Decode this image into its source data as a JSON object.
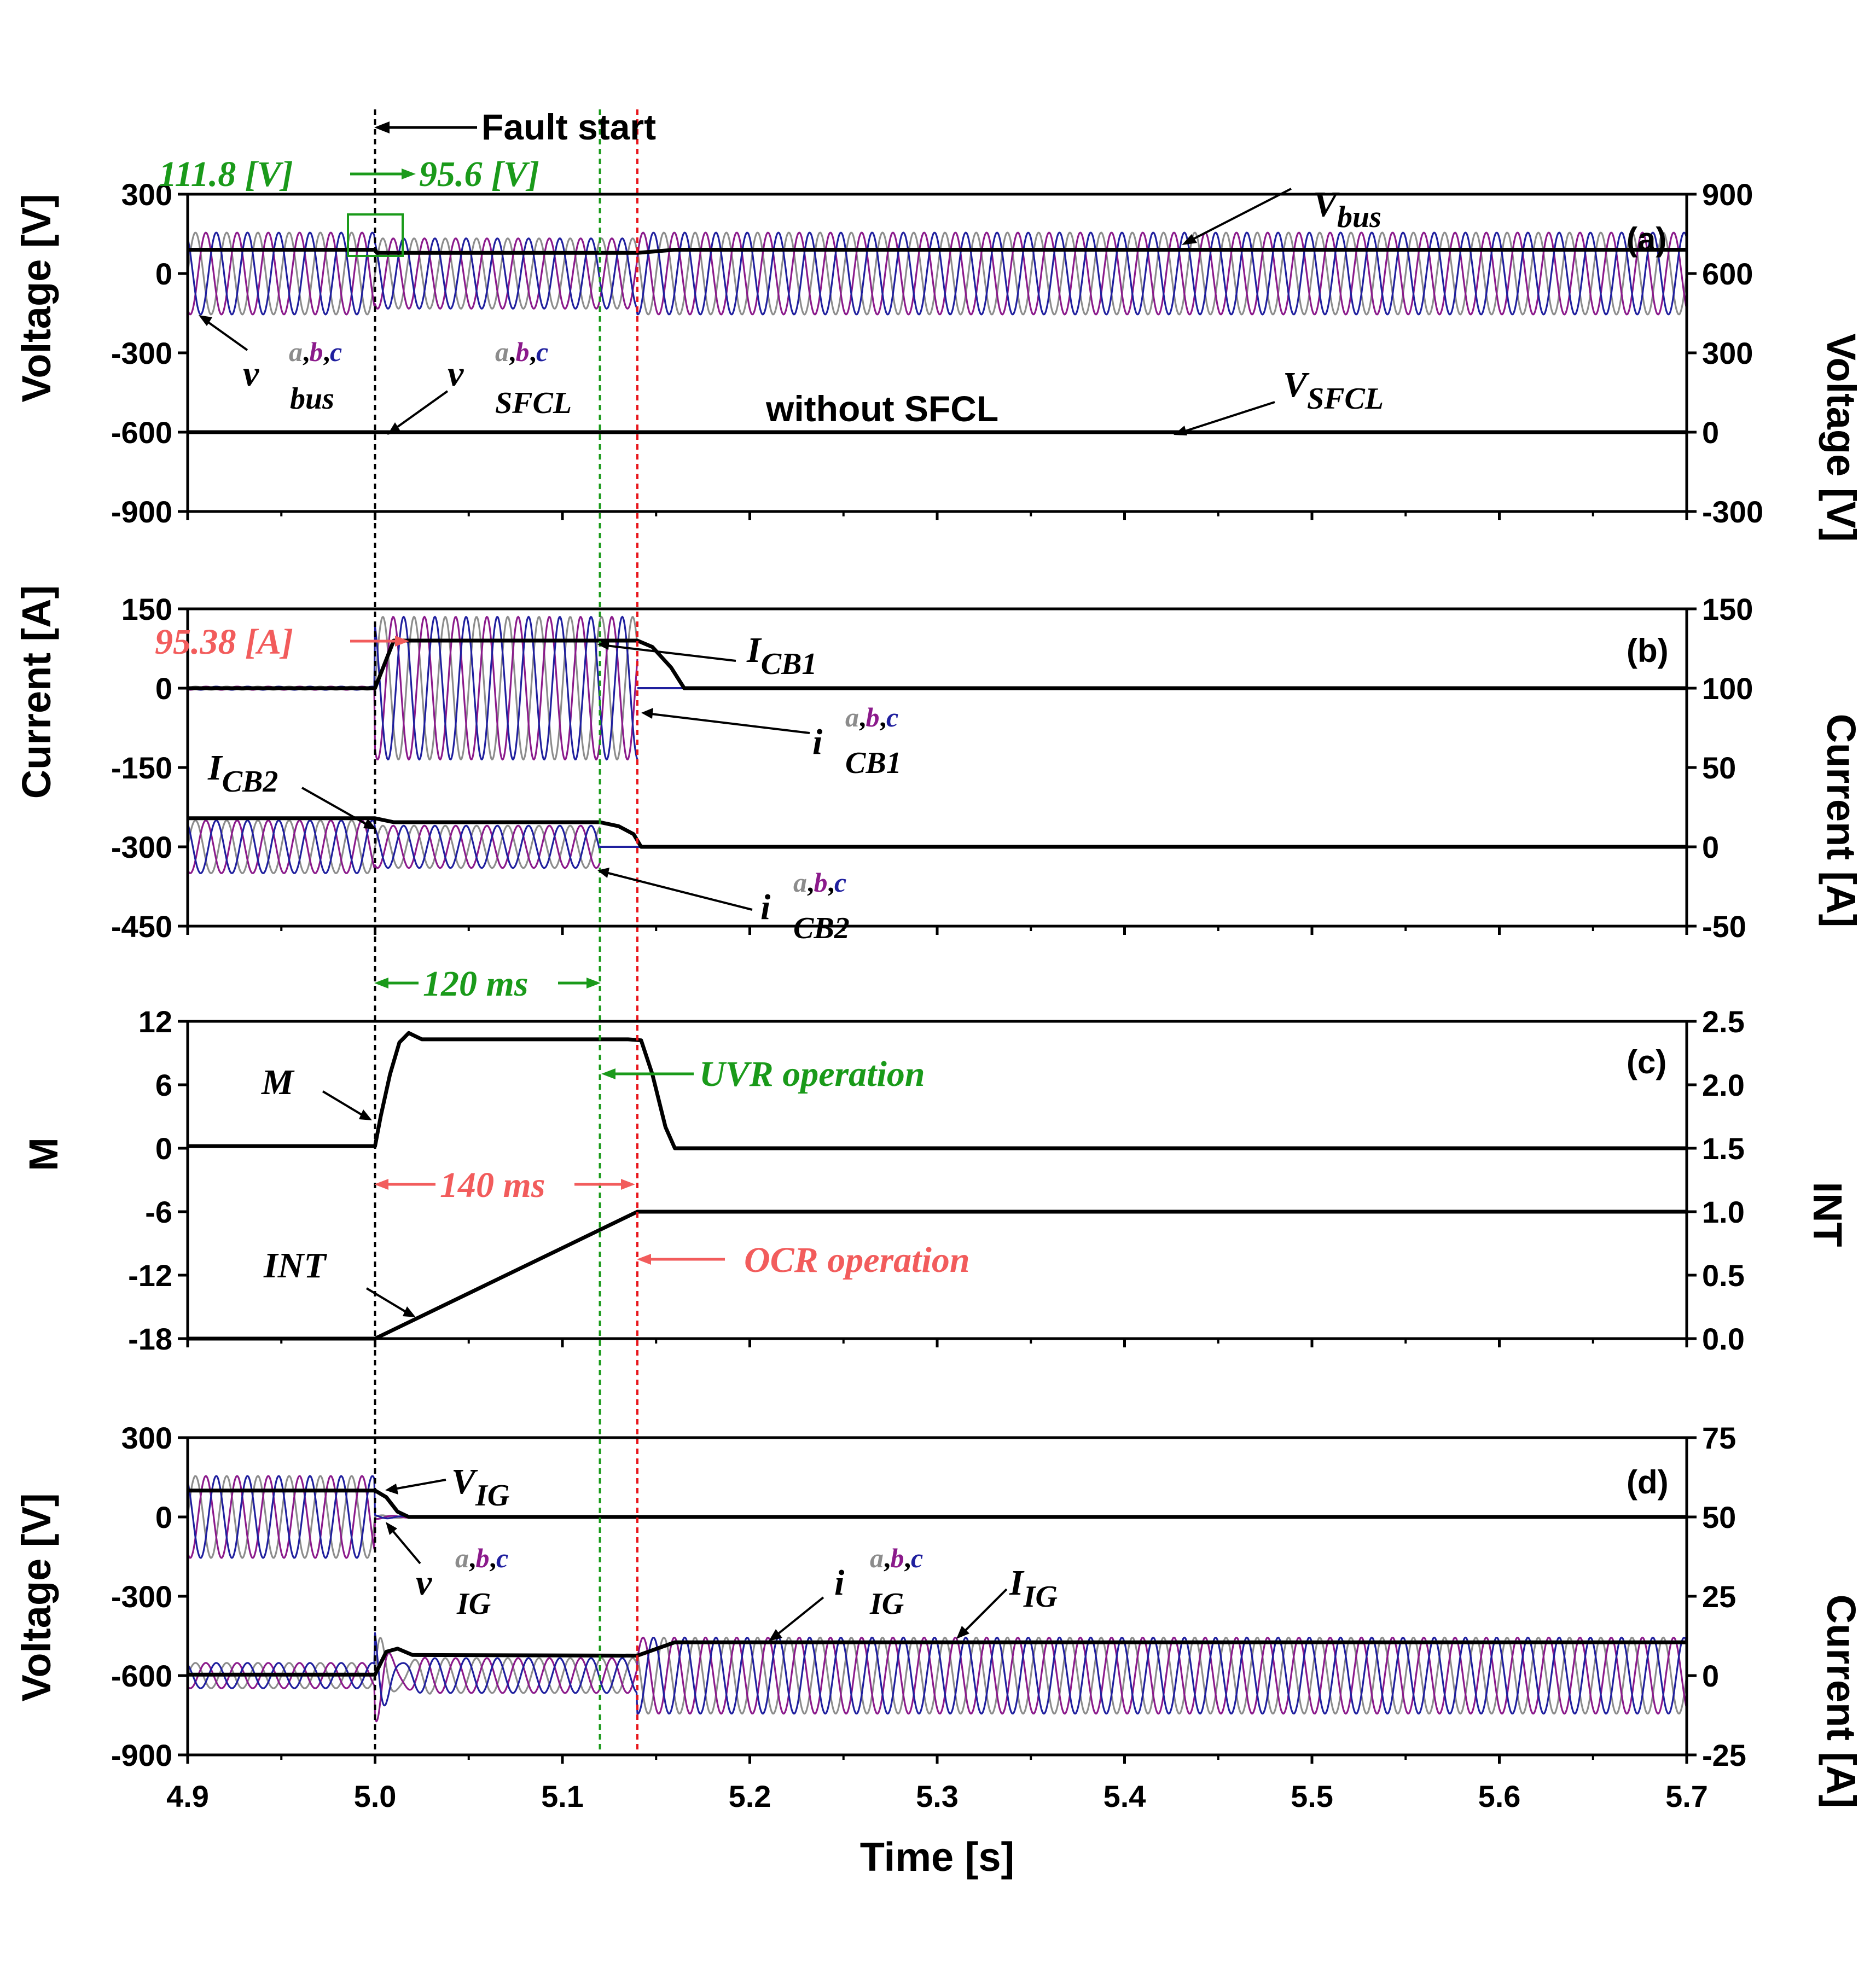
{
  "chart_data": {
    "type": "line",
    "x": {
      "label": "Time [s]",
      "range": [
        4.9,
        5.7
      ],
      "ticks": [
        "4.9",
        "5.0",
        "5.1",
        "5.2",
        "5.3",
        "5.4",
        "5.5",
        "5.6",
        "5.7"
      ]
    },
    "markers": [
      {
        "name": "fault",
        "x": 5.0,
        "color": "#000000",
        "label": "Fault start"
      },
      {
        "name": "uvr",
        "x": 5.12,
        "color": "#1a9a1a",
        "label": "UVR operation"
      },
      {
        "name": "ocr",
        "x": 5.14,
        "color": "#e8141a",
        "label": "OCR operation"
      }
    ],
    "colors": {
      "a": "#8c8c8c",
      "b": "#8b1a8b",
      "c": "#1f1f9e",
      "bold": "#000000",
      "green": "#1a9a1a",
      "red": "#f25c5c"
    },
    "panels": [
      {
        "tag": "(a)",
        "left_axis": {
          "label": "Voltage [V]",
          "range": [
            -900,
            300
          ],
          "ticks": [
            "300",
            "0",
            "-300",
            "-600",
            "-900"
          ]
        },
        "right_axis": {
          "label": "Voltage [V]",
          "range": [
            -300,
            900
          ],
          "ticks": [
            "900",
            "600",
            "300",
            "0",
            "-300"
          ]
        },
        "series": [
          {
            "name": "v_bus a,b,c",
            "axis": "left",
            "phases": [
              "a",
              "b",
              "c"
            ],
            "amplitude_before": 155,
            "amplitude_fault": 133,
            "amplitude_after": 155,
            "freq_hz": 60
          },
          {
            "name": "V_bus",
            "axis": "right",
            "values": [
              [
                4.9,
                690
              ],
              [
                5.0,
                690
              ],
              [
                5.001,
                678
              ],
              [
                5.14,
                678
              ],
              [
                5.16,
                690
              ],
              [
                5.7,
                690
              ]
            ]
          },
          {
            "name": "V_SFCL",
            "axis": "right",
            "values": [
              [
                4.9,
                0
              ],
              [
                5.7,
                0
              ]
            ]
          }
        ],
        "annotations": {
          "v_before": "111.8 [V]",
          "v_after": "95.6 [V]",
          "no_sfcl": "without SFCL",
          "vbus_main": "V",
          "vbus_sub": "bus",
          "vsfcl_main": "V",
          "vsfcl_sub": "SFCL",
          "vbusabc_main": "v",
          "vbusabc_sub": "bus",
          "vsfclabc_main": "v",
          "vsfclabc_sub": "SFCL",
          "sup_a": "a",
          "sup_b": "b",
          "sup_c": "c",
          "comma": ","
        }
      },
      {
        "tag": "(b)",
        "left_axis": {
          "label": "Current [A]",
          "range": [
            -450,
            150
          ],
          "ticks": [
            "150",
            "0",
            "-150",
            "-300",
            "-450"
          ]
        },
        "right_axis": {
          "label": "Current [A]",
          "range": [
            -50,
            150
          ],
          "ticks": [
            "150",
            "100",
            "50",
            "0",
            "-50"
          ]
        },
        "series": [
          {
            "name": "i_CB1 a,b,c",
            "axis": "left",
            "offset": 0,
            "amplitude_before": 3,
            "amplitude_fault": 135,
            "freq_hz": 60,
            "start": 4.9,
            "trip": 5.14
          },
          {
            "name": "I_CB1",
            "axis": "right",
            "values": [
              [
                4.9,
                100
              ],
              [
                5.0,
                100
              ],
              [
                5.01,
                130
              ],
              [
                5.14,
                130
              ],
              [
                5.148,
                126
              ],
              [
                5.158,
                113
              ],
              [
                5.165,
                100
              ],
              [
                5.7,
                100
              ]
            ]
          },
          {
            "name": "i_CB2 a,b,c",
            "axis": "left",
            "offset": -300,
            "amplitude_before": 50,
            "amplitude_fault": 40,
            "freq_hz": 60,
            "start": 4.9,
            "trip": 5.12
          },
          {
            "name": "I_CB2",
            "axis": "right",
            "values": [
              [
                4.9,
                18
              ],
              [
                5.0,
                18
              ],
              [
                5.01,
                15.5
              ],
              [
                5.12,
                15.5
              ],
              [
                5.13,
                13
              ],
              [
                5.138,
                8
              ],
              [
                5.142,
                0
              ],
              [
                5.7,
                0
              ]
            ]
          }
        ],
        "annotations": {
          "i_peak": "95.38 [A]",
          "icb1_main": "I",
          "icb1_sub": "CB1",
          "icb2_main": "I",
          "icb2_sub": "CB2",
          "icb1abc_main": "i",
          "icb1abc_sub": "CB1",
          "icb2abc_main": "i",
          "icb2abc_sub": "CB2",
          "sup_a": "a",
          "sup_b": "b",
          "sup_c": "c",
          "comma": ","
        }
      },
      {
        "tag": "(c)",
        "left_axis": {
          "label": "M",
          "range": [
            -18,
            12
          ],
          "ticks": [
            "12",
            "6",
            "0",
            "-6",
            "-12",
            "-18"
          ]
        },
        "right_axis": {
          "label": "INT",
          "range": [
            0.0,
            2.5
          ],
          "ticks": [
            "2.5",
            "2.0",
            "1.5",
            "1.0",
            "0.5",
            "0.0"
          ]
        },
        "series": [
          {
            "name": "M",
            "axis": "left",
            "values": [
              [
                4.9,
                0.2
              ],
              [
                5.0,
                0.2
              ],
              [
                5.003,
                3
              ],
              [
                5.008,
                7
              ],
              [
                5.013,
                10
              ],
              [
                5.018,
                10.9
              ],
              [
                5.025,
                10.3
              ],
              [
                5.135,
                10.3
              ],
              [
                5.142,
                10.2
              ],
              [
                5.148,
                7
              ],
              [
                5.155,
                2
              ],
              [
                5.16,
                0
              ],
              [
                5.7,
                0
              ]
            ]
          },
          {
            "name": "INT",
            "axis": "right",
            "values": [
              [
                4.9,
                0.0
              ],
              [
                5.0,
                0.0
              ],
              [
                5.14,
                1.0
              ],
              [
                5.7,
                1.0
              ]
            ]
          }
        ],
        "annotations": {
          "m_label": "M",
          "int_label": "INT",
          "t_uvr": "120 ms",
          "t_ocr": "140 ms",
          "uvr": "UVR operation",
          "ocr": "OCR operation"
        }
      },
      {
        "tag": "(d)",
        "left_axis": {
          "label": "Voltage [V]",
          "range": [
            -900,
            300
          ],
          "ticks": [
            "300",
            "0",
            "-300",
            "-600",
            "-900"
          ]
        },
        "right_axis": {
          "label": "Current [A]",
          "range": [
            -25,
            75
          ],
          "ticks": [
            "75",
            "50",
            "25",
            "0",
            "-25"
          ]
        },
        "series": [
          {
            "name": "v_IG a,b,c",
            "axis": "left",
            "amplitude_before": 155,
            "freq_hz": 60
          },
          {
            "name": "V_IG",
            "axis": "left",
            "values": [
              [
                4.9,
                100
              ],
              [
                5.0,
                100
              ],
              [
                5.006,
                75
              ],
              [
                5.012,
                20
              ],
              [
                5.018,
                0
              ],
              [
                5.7,
                0
              ]
            ]
          },
          {
            "name": "i_IG a,b,c",
            "axis": "right",
            "offset": 0,
            "amplitude_before": 4,
            "amplitude_fault": 5.5,
            "amplitude_after": 12,
            "freq_hz": 60
          },
          {
            "name": "I_IG",
            "axis": "right",
            "values": [
              [
                4.9,
                0.3
              ],
              [
                5.0,
                0.3
              ],
              [
                5.006,
                7.5
              ],
              [
                5.012,
                8.5
              ],
              [
                5.02,
                6.5
              ],
              [
                5.14,
                6.3
              ],
              [
                5.16,
                10.5
              ],
              [
                5.7,
                10.5
              ]
            ]
          }
        ],
        "annotations": {
          "vig_main": "V",
          "vig_sub": "IG",
          "vigabc_main": "v",
          "vigabc_sub": "IG",
          "iigabc_main": "i",
          "iigabc_sub": "IG",
          "iig_main": "I",
          "iig_sub": "IG",
          "sup_a": "a",
          "sup_b": "b",
          "sup_c": "c",
          "comma": ","
        }
      }
    ]
  }
}
